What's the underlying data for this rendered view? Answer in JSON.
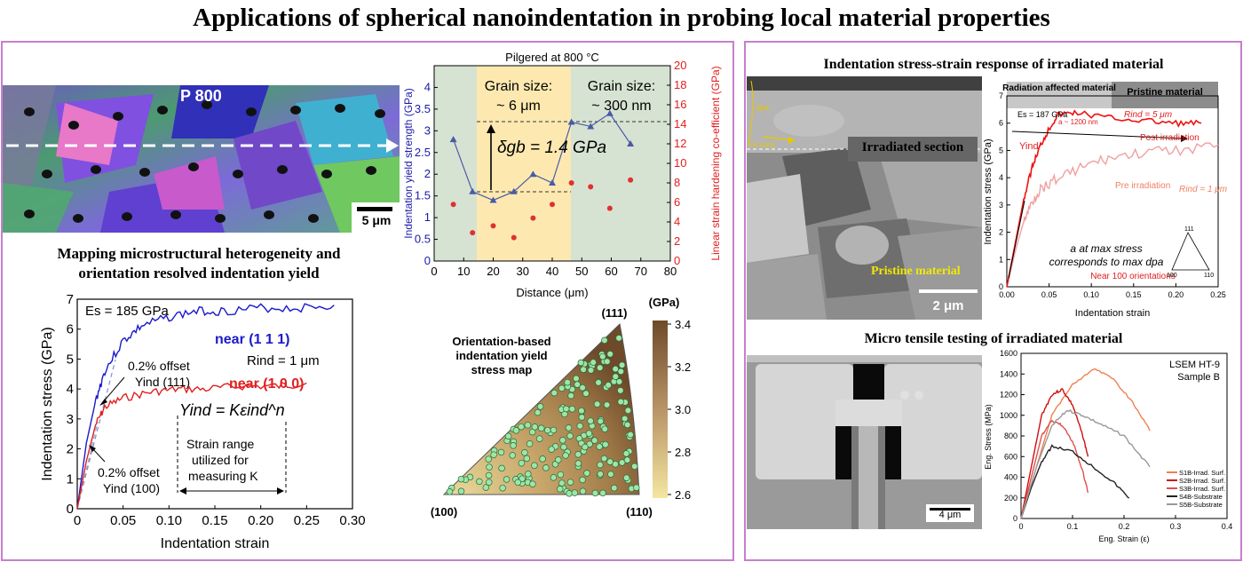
{
  "title": "Applications of spherical nanoindentation in probing local material properties",
  "left_panel": {
    "ebsd_label": "P 800",
    "ebsd_scalebar": "5 μm",
    "mapping_heading_1": "Mapping microstructural heterogeneity and",
    "mapping_heading_2": "orientation resolved indentation yield",
    "yield_chart_title": "Pilgered at 800 °C",
    "grain_label_1a": "Grain size:",
    "grain_label_1b": "~ 6 μm",
    "grain_label_2a": "Grain size:",
    "grain_label_2b": "~ 300 nm",
    "delta_label": "δgb = 1.4 GPa",
    "ipf_title_1": "Orientation-based",
    "ipf_title_2": "indentation yield",
    "ipf_title_3": "stress map",
    "ipf_corner_111": "(111)",
    "ipf_corner_100": "(100)",
    "ipf_corner_110": "(110)",
    "colorbar_unit": "(GPa)",
    "colorbar_ticks": [
      "3.4",
      "3.2",
      "3.0",
      "2.8",
      "2.6"
    ]
  },
  "right_panel": {
    "irr_heading": "Indentation stress-strain response of irradiated material",
    "sem_labels": {
      "dpa": "dpa",
      "fe_ions": "Fe ions",
      "irradiated_section": "Irradiated section",
      "pristine": "Pristine material",
      "scalebar": "2 μm"
    },
    "tensile_heading": "Micro tensile testing of irradiated material",
    "tensile_scalebar": "4 μm"
  },
  "chart_data": [
    {
      "type": "line",
      "title": "",
      "xlabel": "Indentation strain",
      "ylabel": "Indentation stress (GPa)",
      "xlim": [
        0,
        0.3
      ],
      "ylim": [
        0,
        7
      ],
      "xticks": [
        "0",
        "0.05",
        "0.10",
        "0.15",
        "0.20",
        "0.25",
        "0.30"
      ],
      "yticks": [
        "0",
        "1",
        "2",
        "3",
        "4",
        "5",
        "6",
        "7"
      ],
      "series": [
        {
          "name": "near (1 1 1)",
          "color": "#1a1acc",
          "x": [
            0,
            0.01,
            0.02,
            0.03,
            0.05,
            0.07,
            0.1,
            0.13,
            0.16,
            0.2,
            0.24,
            0.28
          ],
          "y": [
            0,
            2.2,
            3.6,
            4.6,
            5.6,
            6.1,
            6.4,
            6.6,
            6.6,
            6.7,
            6.7,
            6.8
          ]
        },
        {
          "name": "near (1 0 0)",
          "color": "#e02020",
          "x": [
            0,
            0.01,
            0.02,
            0.03,
            0.05,
            0.08,
            0.11,
            0.14,
            0.18,
            0.22,
            0.25
          ],
          "y": [
            0,
            1.6,
            2.8,
            3.4,
            3.7,
            3.9,
            4.0,
            4.0,
            4.1,
            4.1,
            4.2
          ]
        }
      ],
      "annotations": [
        "Es = 185 GPa",
        "Rind = 1 μm",
        "0.2% offset",
        "Yind (111)",
        "0.2% offset",
        "Yind (100)",
        "Yind = Kεind^n",
        "Strain range",
        "utilized for",
        "measuring K"
      ]
    },
    {
      "type": "scatter",
      "title": "Pilgered at 800 °C",
      "xlabel": "Distance (μm)",
      "ylabel": "Indentation yield strength (GPa)",
      "y2label": "Linear strain hardening co-efficient (GPa)",
      "xlim": [
        0,
        80
      ],
      "ylim": [
        0,
        4.5
      ],
      "y2lim": [
        0,
        20
      ],
      "xticks": [
        "0",
        "10",
        "20",
        "30",
        "40",
        "50",
        "60",
        "70",
        "80"
      ],
      "yticks": [
        "0",
        "0.5",
        "1",
        "1.5",
        "2",
        "2.5",
        "3",
        "3.5",
        "4"
      ],
      "y2ticks": [
        "0",
        "2",
        "4",
        "6",
        "8",
        "10",
        "12",
        "14",
        "16",
        "18",
        "20"
      ],
      "series": [
        {
          "name": "Indentation yield strength",
          "color": "#4a5aa8",
          "x": [
            6.5,
            13,
            20,
            27,
            33.5,
            40,
            46.5,
            53,
            59.5,
            66.5
          ],
          "y": [
            2.8,
            1.6,
            1.4,
            1.6,
            2.0,
            1.8,
            3.2,
            3.1,
            3.4,
            2.7
          ]
        },
        {
          "name": "Linear strain hardening co-efficient",
          "color": "#e03030",
          "x": [
            6.5,
            13,
            20,
            27,
            33.5,
            40,
            46.5,
            53,
            59.5,
            66.5
          ],
          "y": [
            5.8,
            2.9,
            3.6,
            2.4,
            4.4,
            5.8,
            8.0,
            7.6,
            5.4,
            8.3
          ]
        }
      ]
    },
    {
      "type": "line",
      "title": "",
      "xlabel": "Indentation strain",
      "ylabel": "Indentation stress (GPa)",
      "xlim": [
        0,
        0.25
      ],
      "ylim": [
        0,
        7
      ],
      "xticks": [
        "0.00",
        "0.05",
        "0.10",
        "0.15",
        "0.20",
        "0.25"
      ],
      "yticks": [
        "0",
        "1",
        "2",
        "3",
        "4",
        "5",
        "6",
        "7"
      ],
      "header_labels": [
        "Radiation affected material",
        "Pristine material"
      ],
      "series": [
        {
          "name": "Post irradiation",
          "color": "#ee1111",
          "x": [
            0,
            0.01,
            0.02,
            0.03,
            0.04,
            0.05,
            0.06,
            0.08,
            0.12,
            0.16,
            0.2,
            0.23
          ],
          "y": [
            0,
            1.6,
            3.2,
            4.4,
            5.2,
            5.8,
            6.3,
            6.4,
            6.2,
            6.1,
            6.0,
            6.0
          ]
        },
        {
          "name": "Pre irradiation",
          "color": "#f0a0a0",
          "x": [
            0,
            0.01,
            0.02,
            0.03,
            0.04,
            0.06,
            0.09,
            0.12,
            0.16,
            0.2,
            0.25
          ],
          "y": [
            0,
            1.3,
            2.4,
            3.1,
            3.6,
            4.0,
            4.4,
            4.7,
            4.9,
            5.0,
            5.2
          ]
        }
      ],
      "annotations": [
        "Es = 187 GPa",
        "a ~ 1200 nm",
        "Rind = 5 μm",
        "Yind",
        "Post irradiation",
        "Pre irradiation",
        "Rind = 1 μm",
        "a at max stress",
        "corresponds to max dpa",
        "Near 100 orientations",
        "111",
        "100",
        "110"
      ]
    },
    {
      "type": "line",
      "title": "LSEM HT-9",
      "subtitle": "Sample B",
      "xlabel": "Eng. Strain (ε)",
      "ylabel": "Eng. Stress (MPa)",
      "xlim": [
        0,
        0.4
      ],
      "ylim": [
        0,
        1600
      ],
      "xticks": [
        "0",
        "0.1",
        "0.2",
        "0.3",
        "0.4"
      ],
      "yticks": [
        "0",
        "200",
        "400",
        "600",
        "800",
        "1000",
        "1200",
        "1400",
        "1600"
      ],
      "series": [
        {
          "name": "S1B-Irrad. Surf.",
          "color": "#f08050",
          "x": [
            0,
            0.03,
            0.06,
            0.1,
            0.14,
            0.18,
            0.22,
            0.25
          ],
          "y": [
            0,
            500,
            1000,
            1300,
            1450,
            1350,
            1100,
            850
          ]
        },
        {
          "name": "S2B-Irrad. Surf.",
          "color": "#cc1010",
          "x": [
            0,
            0.02,
            0.04,
            0.06,
            0.08,
            0.1,
            0.12,
            0.13
          ],
          "y": [
            0,
            500,
            1000,
            1200,
            1250,
            1100,
            800,
            600
          ]
        },
        {
          "name": "S3B-Irrad. Surf.",
          "color": "#e05050",
          "x": [
            0,
            0.02,
            0.04,
            0.06,
            0.08,
            0.1,
            0.12,
            0.13
          ],
          "y": [
            0,
            400,
            800,
            950,
            900,
            750,
            450,
            250
          ]
        },
        {
          "name": "S4B-Substrate",
          "color": "#222222",
          "x": [
            0,
            0.02,
            0.04,
            0.06,
            0.1,
            0.14,
            0.18,
            0.21
          ],
          "y": [
            0,
            300,
            550,
            700,
            650,
            500,
            350,
            200
          ]
        },
        {
          "name": "S5B-Substrate",
          "color": "#999999",
          "x": [
            0,
            0.03,
            0.06,
            0.09,
            0.12,
            0.16,
            0.2,
            0.25
          ],
          "y": [
            0,
            500,
            900,
            1050,
            1000,
            900,
            800,
            500
          ]
        }
      ]
    }
  ]
}
